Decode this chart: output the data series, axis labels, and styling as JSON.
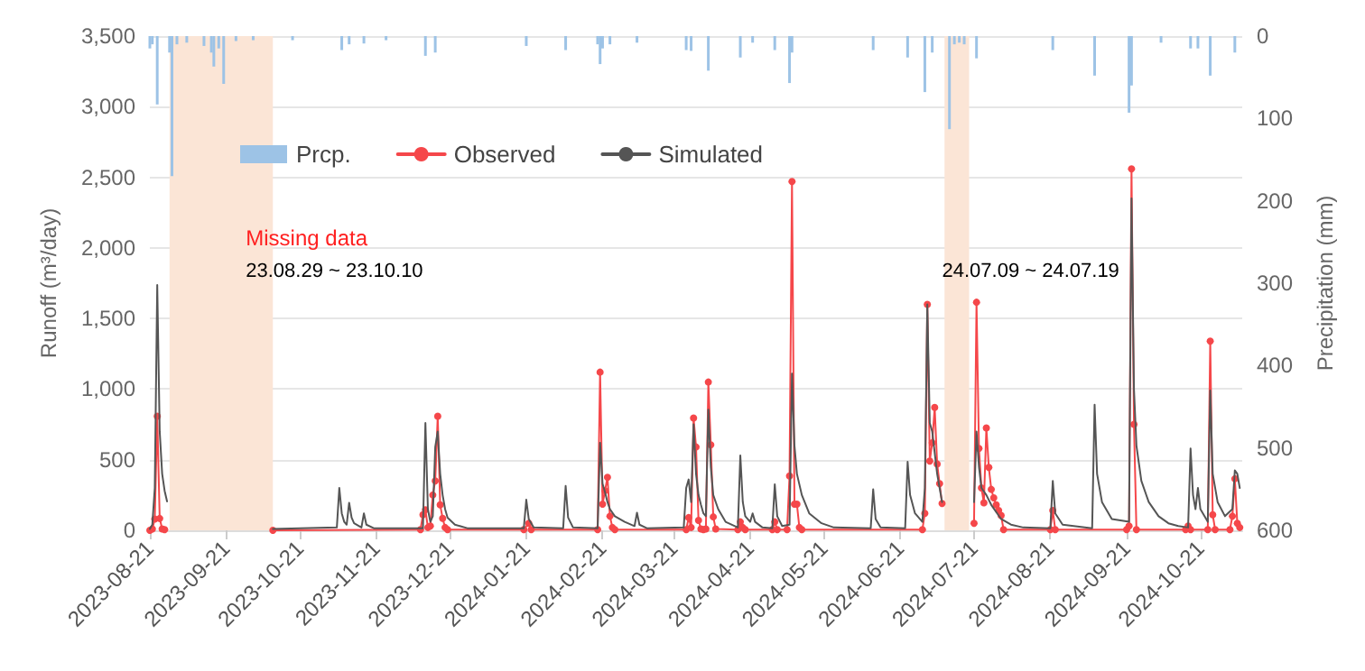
{
  "chart_data": {
    "type": "line",
    "ylabel": "Runoff (m³/day)",
    "y2label": "Precipitation (mm)",
    "xlim": [
      "2023-08-21",
      "2024-11-07"
    ],
    "xticks": [
      "2023-08-21",
      "2023-09-21",
      "2023-10-21",
      "2023-11-21",
      "2023-12-21",
      "2024-01-21",
      "2024-02-21",
      "2024-03-21",
      "2024-04-21",
      "2024-05-21",
      "2024-06-21",
      "2024-07-21",
      "2024-08-21",
      "2024-09-21",
      "2024-10-21"
    ],
    "ylim": [
      0,
      3500
    ],
    "yticks": [
      0,
      500,
      {
        "value": 1000,
        "label": "1,000"
      },
      {
        "value": 1500,
        "label": "1,500"
      },
      {
        "value": 2000,
        "label": "2,000"
      },
      {
        "value": 2500,
        "label": "2,500"
      },
      {
        "value": 3000,
        "label": "3,000"
      },
      {
        "value": 3500,
        "label": "3,500"
      }
    ],
    "y2lim": [
      600,
      0
    ],
    "y2ticks": [
      0,
      100,
      200,
      300,
      400,
      500,
      600
    ],
    "grid": "y",
    "legend": "top left",
    "series": [
      {
        "name": "Prcp.",
        "type": "bar",
        "axis": "y2",
        "color": "#9dc3e6",
        "x": [
          "2023-08-21",
          "2023-08-22",
          "2023-08-24",
          "2023-08-29",
          "2023-08-30",
          "2023-09-01",
          "2023-09-05",
          "2023-09-12",
          "2023-09-15",
          "2023-09-16",
          "2023-09-18",
          "2023-09-20",
          "2023-09-25",
          "2023-10-02",
          "2023-10-18",
          "2023-11-07",
          "2023-11-10",
          "2023-11-16",
          "2023-11-25",
          "2023-12-11",
          "2023-12-15",
          "2024-01-21",
          "2024-02-06",
          "2024-02-19",
          "2024-02-20",
          "2024-02-21",
          "2024-02-24",
          "2024-03-06",
          "2024-03-26",
          "2024-03-28",
          "2024-04-04",
          "2024-04-17",
          "2024-04-22",
          "2024-05-01",
          "2024-05-07",
          "2024-05-08",
          "2024-06-10",
          "2024-06-24",
          "2024-07-01",
          "2024-07-04",
          "2024-07-11",
          "2024-07-13",
          "2024-07-15",
          "2024-07-17",
          "2024-07-22",
          "2024-08-22",
          "2024-09-08",
          "2024-09-22",
          "2024-09-23",
          "2024-10-05",
          "2024-10-17",
          "2024-10-20",
          "2024-10-25",
          "2024-11-04"
        ],
        "values": [
          15,
          10,
          83,
          20,
          170,
          10,
          8,
          12,
          20,
          37,
          15,
          58,
          6,
          5,
          5,
          17,
          10,
          9,
          5,
          24,
          20,
          12,
          17,
          10,
          34,
          15,
          10,
          8,
          17,
          18,
          42,
          26,
          8,
          17,
          57,
          20,
          17,
          26,
          68,
          20,
          113,
          10,
          8,
          10,
          27,
          17,
          48,
          93,
          60,
          8,
          15,
          15,
          48,
          20
        ]
      },
      {
        "name": "Observed",
        "color": "#f5474a",
        "marker": "circle",
        "line_style": "solid",
        "x": [
          "2023-08-21",
          "2023-08-22",
          "2023-08-23",
          "2023-08-24",
          "2023-08-25",
          "2023-08-26",
          "2023-08-27",
          "2023-08-28",
          "2023-10-10",
          "2023-12-09",
          "2023-12-10",
          "2023-12-11",
          "2023-12-12",
          "2023-12-13",
          "2023-12-14",
          "2023-12-15",
          "2023-12-16",
          "2023-12-17",
          "2023-12-18",
          "2023-12-19",
          "2023-12-20",
          "2024-01-20",
          "2024-01-22",
          "2024-01-23",
          "2024-02-19",
          "2024-02-20",
          "2024-02-21",
          "2024-02-22",
          "2024-02-23",
          "2024-02-24",
          "2024-02-25",
          "2024-02-26",
          "2024-03-26",
          "2024-03-27",
          "2024-03-28",
          "2024-03-29",
          "2024-03-30",
          "2024-03-31",
          "2024-04-01",
          "2024-04-02",
          "2024-04-03",
          "2024-04-04",
          "2024-04-05",
          "2024-04-06",
          "2024-04-07",
          "2024-04-16",
          "2024-04-17",
          "2024-04-18",
          "2024-04-19",
          "2024-04-30",
          "2024-05-01",
          "2024-05-02",
          "2024-05-06",
          "2024-05-07",
          "2024-05-08",
          "2024-05-09",
          "2024-05-10",
          "2024-05-11",
          "2024-05-12",
          "2024-06-30",
          "2024-07-01",
          "2024-07-02",
          "2024-07-03",
          "2024-07-04",
          "2024-07-05",
          "2024-07-06",
          "2024-07-07",
          "2024-07-08",
          "2024-07-09",
          "2024-07-21",
          "2024-07-22",
          "2024-07-23",
          "2024-07-24",
          "2024-07-25",
          "2024-07-26",
          "2024-07-27",
          "2024-07-28",
          "2024-07-29",
          "2024-07-30",
          "2024-07-31",
          "2024-08-01",
          "2024-08-02",
          "2024-08-21",
          "2024-08-22",
          "2024-08-23",
          "2024-09-21",
          "2024-09-22",
          "2024-09-23",
          "2024-09-24",
          "2024-09-25",
          "2024-10-15",
          "2024-10-16",
          "2024-10-17",
          "2024-10-24",
          "2024-10-25",
          "2024-10-26",
          "2024-10-27",
          "2024-11-02",
          "2024-11-03",
          "2024-11-04",
          "2024-11-05",
          "2024-11-06"
        ],
        "values": [
          0,
          10,
          80,
          808,
          84,
          10,
          5,
          null,
          0,
          5,
          110,
          145,
          20,
          30,
          250,
          350,
          808,
          180,
          85,
          20,
          5,
          5,
          50,
          5,
          5,
          1120,
          185,
          280,
          375,
          100,
          20,
          5,
          5,
          90,
          20,
          795,
          590,
          70,
          10,
          5,
          10,
          1050,
          605,
          95,
          10,
          5,
          60,
          20,
          5,
          5,
          60,
          5,
          5,
          385,
          2470,
          185,
          185,
          20,
          5,
          5,
          120,
          1600,
          490,
          620,
          870,
          470,
          330,
          190,
          null,
          50,
          1615,
          580,
          300,
          195,
          725,
          445,
          290,
          230,
          180,
          140,
          105,
          5,
          5,
          140,
          5,
          5,
          30,
          2560,
          750,
          5,
          5,
          30,
          5,
          5,
          1340,
          110,
          5,
          5,
          100,
          365,
          50,
          20
        ]
      },
      {
        "name": "Simulated",
        "color": "#555555",
        "marker": "none",
        "line_style": "solid",
        "x": [
          "2023-08-21",
          "2023-08-22",
          "2023-08-23",
          "2023-08-24",
          "2023-08-25",
          "2023-08-26",
          "2023-08-27",
          "2023-08-28",
          "2023-08-29",
          "2023-10-10",
          "2023-11-05",
          "2023-11-06",
          "2023-11-07",
          "2023-11-08",
          "2023-11-09",
          "2023-11-10",
          "2023-11-11",
          "2023-11-12",
          "2023-11-15",
          "2023-11-16",
          "2023-11-17",
          "2023-11-20",
          "2023-12-10",
          "2023-12-11",
          "2023-12-12",
          "2023-12-13",
          "2023-12-14",
          "2023-12-15",
          "2023-12-16",
          "2023-12-17",
          "2023-12-18",
          "2023-12-19",
          "2023-12-20",
          "2023-12-23",
          "2023-12-28",
          "2024-01-20",
          "2024-01-21",
          "2024-01-22",
          "2024-01-24",
          "2024-02-05",
          "2024-02-06",
          "2024-02-07",
          "2024-02-09",
          "2024-02-19",
          "2024-02-20",
          "2024-02-21",
          "2024-02-22",
          "2024-02-23",
          "2024-02-24",
          "2024-02-26",
          "2024-03-01",
          "2024-03-05",
          "2024-03-06",
          "2024-03-07",
          "2024-03-10",
          "2024-03-25",
          "2024-03-26",
          "2024-03-27",
          "2024-03-28",
          "2024-03-29",
          "2024-03-30",
          "2024-03-31",
          "2024-04-01",
          "2024-04-02",
          "2024-04-03",
          "2024-04-04",
          "2024-04-05",
          "2024-04-06",
          "2024-04-08",
          "2024-04-11",
          "2024-04-16",
          "2024-04-17",
          "2024-04-18",
          "2024-04-19",
          "2024-04-21",
          "2024-04-22",
          "2024-04-23",
          "2024-04-26",
          "2024-04-30",
          "2024-05-01",
          "2024-05-02",
          "2024-05-04",
          "2024-05-07",
          "2024-05-08",
          "2024-05-09",
          "2024-05-10",
          "2024-05-12",
          "2024-05-15",
          "2024-05-20",
          "2024-05-25",
          "2024-06-09",
          "2024-06-10",
          "2024-06-11",
          "2024-06-13",
          "2024-06-23",
          "2024-06-24",
          "2024-06-25",
          "2024-06-27",
          "2024-06-30",
          "2024-07-01",
          "2024-07-02",
          "2024-07-03",
          "2024-07-04",
          "2024-07-05",
          "2024-07-06",
          "2024-07-07",
          "2024-07-08",
          "2024-07-09",
          "2024-07-21",
          "2024-07-22",
          "2024-07-23",
          "2024-07-24",
          "2024-07-26",
          "2024-07-28",
          "2024-08-01",
          "2024-08-05",
          "2024-08-10",
          "2024-08-21",
          "2024-08-22",
          "2024-08-23",
          "2024-08-26",
          "2024-09-07",
          "2024-09-08",
          "2024-09-09",
          "2024-09-11",
          "2024-09-15",
          "2024-09-22",
          "2024-09-23",
          "2024-09-24",
          "2024-09-25",
          "2024-09-27",
          "2024-09-30",
          "2024-10-04",
          "2024-10-08",
          "2024-10-12",
          "2024-10-16",
          "2024-10-17",
          "2024-10-18",
          "2024-10-19",
          "2024-10-20",
          "2024-10-21",
          "2024-10-24",
          "2024-10-25",
          "2024-10-26",
          "2024-10-28",
          "2024-10-31",
          "2024-11-03",
          "2024-11-04",
          "2024-11-05",
          "2024-11-06"
        ],
        "values": [
          10,
          40,
          300,
          1737,
          700,
          400,
          280,
          205,
          null,
          10,
          20,
          300,
          120,
          60,
          40,
          195,
          90,
          50,
          20,
          120,
          40,
          15,
          15,
          760,
          150,
          60,
          100,
          590,
          700,
          400,
          250,
          150,
          90,
          40,
          15,
          15,
          217,
          80,
          20,
          15,
          314,
          90,
          20,
          15,
          620,
          330,
          270,
          200,
          150,
          100,
          60,
          30,
          125,
          40,
          15,
          20,
          300,
          360,
          200,
          750,
          400,
          250,
          180,
          120,
          100,
          855,
          450,
          250,
          150,
          60,
          20,
          530,
          200,
          100,
          60,
          120,
          60,
          20,
          15,
          325,
          100,
          30,
          40,
          1110,
          600,
          400,
          250,
          120,
          50,
          20,
          15,
          290,
          80,
          20,
          15,
          485,
          250,
          120,
          60,
          300,
          1600,
          760,
          700,
          550,
          400,
          300,
          200,
          null,
          200,
          700,
          450,
          300,
          250,
          180,
          80,
          40,
          20,
          15,
          350,
          120,
          40,
          15,
          890,
          400,
          200,
          80,
          60,
          2350,
          1000,
          600,
          350,
          200,
          100,
          50,
          30,
          20,
          580,
          250,
          150,
          300,
          150,
          60,
          990,
          400,
          200,
          100,
          150,
          425,
          400,
          300
        ]
      }
    ],
    "bands": [
      {
        "axis": "x",
        "from": "2023-08-29",
        "to": "2023-10-10",
        "color": "#fbe5d6",
        "label": "23.08.29 ~ 23.10.10"
      },
      {
        "axis": "x",
        "from": "2024-07-09",
        "to": "2024-07-19",
        "color": "#fbe5d6",
        "label": "24.07.09 ~ 24.07.19"
      }
    ],
    "annotations": [
      "Missing data"
    ]
  }
}
